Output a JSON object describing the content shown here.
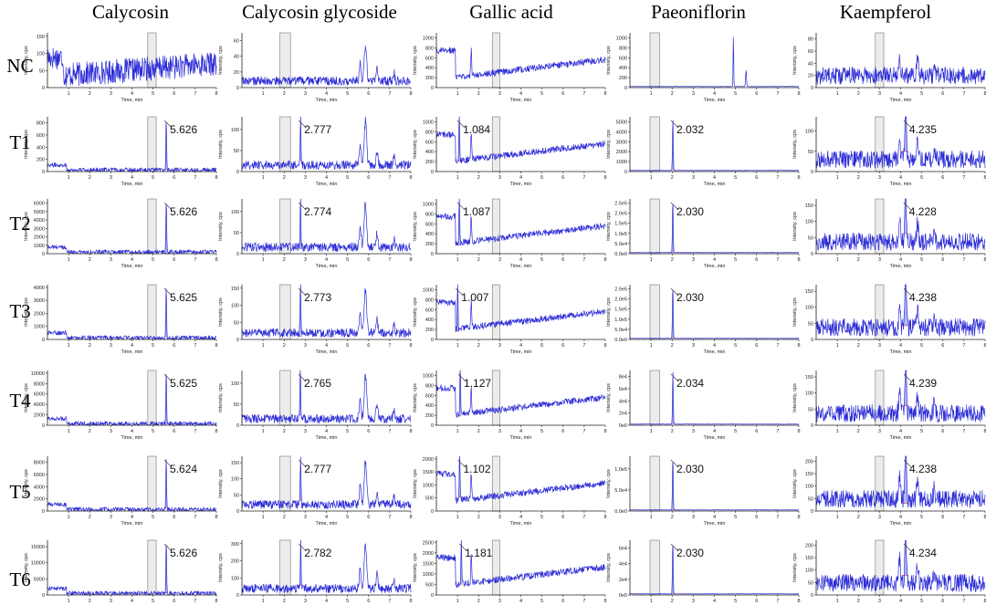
{
  "chart_data": {
    "type": "line",
    "columns": [
      "Calycosin",
      "Calycosin glycoside",
      "Gallic acid",
      "Paeoniflorin",
      "Kaempferol"
    ],
    "rows": [
      "NC",
      "T1",
      "T2",
      "T3",
      "T4",
      "T5",
      "T6"
    ],
    "xlabel": "Time, min",
    "ylabel": "Intensity, cps",
    "xlim": [
      0,
      8
    ],
    "x_ticks": [
      "1",
      "2",
      "3",
      "4",
      "5",
      "6",
      "7",
      "8"
    ],
    "grid": false,
    "shaded_window_min": {
      "Calycosin": [
        4.75,
        5.15
      ],
      "Calycosin glycoside": [
        1.8,
        2.3
      ],
      "Gallic acid": [
        2.65,
        3.0
      ],
      "Paeoniflorin": [
        0.95,
        1.4
      ],
      "Kaempferol": [
        2.8,
        3.2
      ]
    },
    "panels": [
      {
        "column": "Calycosin",
        "row": "NC",
        "y_ticks": [
          "0",
          "50",
          "100",
          "150"
        ],
        "y_max": 160,
        "peak_time": null,
        "peak_label": ""
      },
      {
        "column": "Calycosin",
        "row": "T1",
        "y_ticks": [
          "0",
          "200",
          "400",
          "600",
          "800"
        ],
        "y_max": 900,
        "peak_time": 5.626,
        "peak_label": "5.626"
      },
      {
        "column": "Calycosin",
        "row": "T2",
        "y_ticks": [
          "0",
          "1000",
          "2000",
          "3000",
          "4000",
          "5000",
          "6000"
        ],
        "y_max": 6500,
        "peak_time": 5.626,
        "peak_label": "5.626"
      },
      {
        "column": "Calycosin",
        "row": "T3",
        "y_ticks": [
          "0",
          "1000",
          "2000",
          "3000",
          "4000"
        ],
        "y_max": 4200,
        "peak_time": 5.625,
        "peak_label": "5.625"
      },
      {
        "column": "Calycosin",
        "row": "T4",
        "y_ticks": [
          "0",
          "2000",
          "4000",
          "6000",
          "8000",
          "10000"
        ],
        "y_max": 10500,
        "peak_time": 5.625,
        "peak_label": "5.625"
      },
      {
        "column": "Calycosin",
        "row": "T5",
        "y_ticks": [
          "0",
          "2000",
          "4000",
          "6000",
          "8000"
        ],
        "y_max": 9000,
        "peak_time": 5.624,
        "peak_label": "5.624"
      },
      {
        "column": "Calycosin",
        "row": "T6",
        "y_ticks": [
          "0",
          "5000",
          "10000",
          "15000"
        ],
        "y_max": 17000,
        "peak_time": 5.626,
        "peak_label": "5.626"
      },
      {
        "column": "Calycosin glycoside",
        "row": "NC",
        "y_ticks": [
          "0",
          "20",
          "40",
          "60"
        ],
        "y_max": 70,
        "peak_time": null,
        "peak_label": ""
      },
      {
        "column": "Calycosin glycoside",
        "row": "T1",
        "y_ticks": [
          "0",
          "50",
          "100"
        ],
        "y_max": 130,
        "peak_time": 2.777,
        "peak_label": "2.777"
      },
      {
        "column": "Calycosin glycoside",
        "row": "T2",
        "y_ticks": [
          "0",
          "50",
          "100"
        ],
        "y_max": 130,
        "peak_time": 2.774,
        "peak_label": "2.774"
      },
      {
        "column": "Calycosin glycoside",
        "row": "T3",
        "y_ticks": [
          "0",
          "50",
          "100",
          "150"
        ],
        "y_max": 160,
        "peak_time": 2.773,
        "peak_label": "2.773"
      },
      {
        "column": "Calycosin glycoside",
        "row": "T4",
        "y_ticks": [
          "0",
          "50",
          "100"
        ],
        "y_max": 130,
        "peak_time": 2.765,
        "peak_label": "2.765"
      },
      {
        "column": "Calycosin glycoside",
        "row": "T5",
        "y_ticks": [
          "0",
          "50",
          "100",
          "150"
        ],
        "y_max": 170,
        "peak_time": 2.777,
        "peak_label": "2.777"
      },
      {
        "column": "Calycosin glycoside",
        "row": "T6",
        "y_ticks": [
          "0",
          "100",
          "200",
          "300"
        ],
        "y_max": 320,
        "peak_time": 2.782,
        "peak_label": "2.782"
      },
      {
        "column": "Gallic acid",
        "row": "NC",
        "y_ticks": [
          "0",
          "200",
          "400",
          "600",
          "800",
          "1000"
        ],
        "y_max": 1100,
        "peak_time": null,
        "peak_label": ""
      },
      {
        "column": "Gallic acid",
        "row": "T1",
        "y_ticks": [
          "0",
          "200",
          "400",
          "600",
          "800",
          "1000"
        ],
        "y_max": 1100,
        "peak_time": 1.084,
        "peak_label": "1.084"
      },
      {
        "column": "Gallic acid",
        "row": "T2",
        "y_ticks": [
          "0",
          "200",
          "400",
          "600",
          "800",
          "1000"
        ],
        "y_max": 1100,
        "peak_time": 1.087,
        "peak_label": "1.087"
      },
      {
        "column": "Gallic acid",
        "row": "T3",
        "y_ticks": [
          "0",
          "200",
          "400",
          "600",
          "800",
          "1000"
        ],
        "y_max": 1100,
        "peak_time": 1.007,
        "peak_label": "1.007"
      },
      {
        "column": "Gallic acid",
        "row": "T4",
        "y_ticks": [
          "0",
          "200",
          "400",
          "600",
          "800",
          "1000"
        ],
        "y_max": 1100,
        "peak_time": 1.127,
        "peak_label": "1.127"
      },
      {
        "column": "Gallic acid",
        "row": "T5",
        "y_ticks": [
          "0",
          "500",
          "1000",
          "1500",
          "2000"
        ],
        "y_max": 2100,
        "peak_time": 1.102,
        "peak_label": "1.102"
      },
      {
        "column": "Gallic acid",
        "row": "T6",
        "y_ticks": [
          "0",
          "500",
          "1000",
          "1500",
          "2000",
          "2500"
        ],
        "y_max": 2600,
        "peak_time": 1.181,
        "peak_label": "1.181"
      },
      {
        "column": "Paeoniflorin",
        "row": "NC",
        "y_ticks": [
          "0",
          "200",
          "400",
          "600",
          "800",
          "1000"
        ],
        "y_max": 1100,
        "peak_time": null,
        "peak_label": ""
      },
      {
        "column": "Paeoniflorin",
        "row": "T1",
        "y_ticks": [
          "0",
          "1000",
          "2000",
          "3000",
          "4000",
          "5000"
        ],
        "y_max": 5500,
        "peak_time": 2.032,
        "peak_label": "2.032"
      },
      {
        "column": "Paeoniflorin",
        "row": "T2",
        "y_ticks": [
          "0.0e0",
          "5.0e4",
          "1.0e5",
          "1.5e5",
          "2.0e5",
          "2.5e5"
        ],
        "y_max": 270000,
        "peak_time": 2.03,
        "peak_label": "2.030"
      },
      {
        "column": "Paeoniflorin",
        "row": "T3",
        "y_ticks": [
          "0.0e0",
          "5.0e4",
          "1.0e5",
          "1.5e5",
          "2.0e5",
          "2.5e5"
        ],
        "y_max": 270000,
        "peak_time": 2.03,
        "peak_label": "2.030"
      },
      {
        "column": "Paeoniflorin",
        "row": "T4",
        "y_ticks": [
          "0e0",
          "2e4",
          "4e4",
          "6e4",
          "8e4"
        ],
        "y_max": 90000,
        "peak_time": 2.034,
        "peak_label": "2.034"
      },
      {
        "column": "Paeoniflorin",
        "row": "T5",
        "y_ticks": [
          "0.0e0",
          "5.0e4",
          "1.0e5"
        ],
        "y_max": 130000,
        "peak_time": 2.03,
        "peak_label": "2.030"
      },
      {
        "column": "Paeoniflorin",
        "row": "T6",
        "y_ticks": [
          "0e0",
          "2e4",
          "4e4",
          "6e4"
        ],
        "y_max": 70000,
        "peak_time": 2.03,
        "peak_label": "2.030"
      },
      {
        "column": "Kaempferol",
        "row": "NC",
        "y_ticks": [
          "0",
          "20",
          "40",
          "60",
          "80"
        ],
        "y_max": 90,
        "peak_time": null,
        "peak_label": ""
      },
      {
        "column": "Kaempferol",
        "row": "T1",
        "y_ticks": [
          "0",
          "50",
          "100"
        ],
        "y_max": 135,
        "peak_time": 4.235,
        "peak_label": "4.235"
      },
      {
        "column": "Kaempferol",
        "row": "T2",
        "y_ticks": [
          "0",
          "50",
          "100",
          "150"
        ],
        "y_max": 170,
        "peak_time": 4.228,
        "peak_label": "4.228"
      },
      {
        "column": "Kaempferol",
        "row": "T3",
        "y_ticks": [
          "0",
          "50",
          "100",
          "150"
        ],
        "y_max": 170,
        "peak_time": 4.238,
        "peak_label": "4.238"
      },
      {
        "column": "Kaempferol",
        "row": "T4",
        "y_ticks": [
          "0",
          "50",
          "100",
          "150"
        ],
        "y_max": 170,
        "peak_time": 4.239,
        "peak_label": "4.239"
      },
      {
        "column": "Kaempferol",
        "row": "T5",
        "y_ticks": [
          "0",
          "50",
          "100",
          "150",
          "200"
        ],
        "y_max": 220,
        "peak_time": 4.238,
        "peak_label": "4.238"
      },
      {
        "column": "Kaempferol",
        "row": "T6",
        "y_ticks": [
          "0",
          "50",
          "100",
          "150",
          "200"
        ],
        "y_max": 220,
        "peak_time": 4.234,
        "peak_label": "4.234"
      }
    ]
  }
}
